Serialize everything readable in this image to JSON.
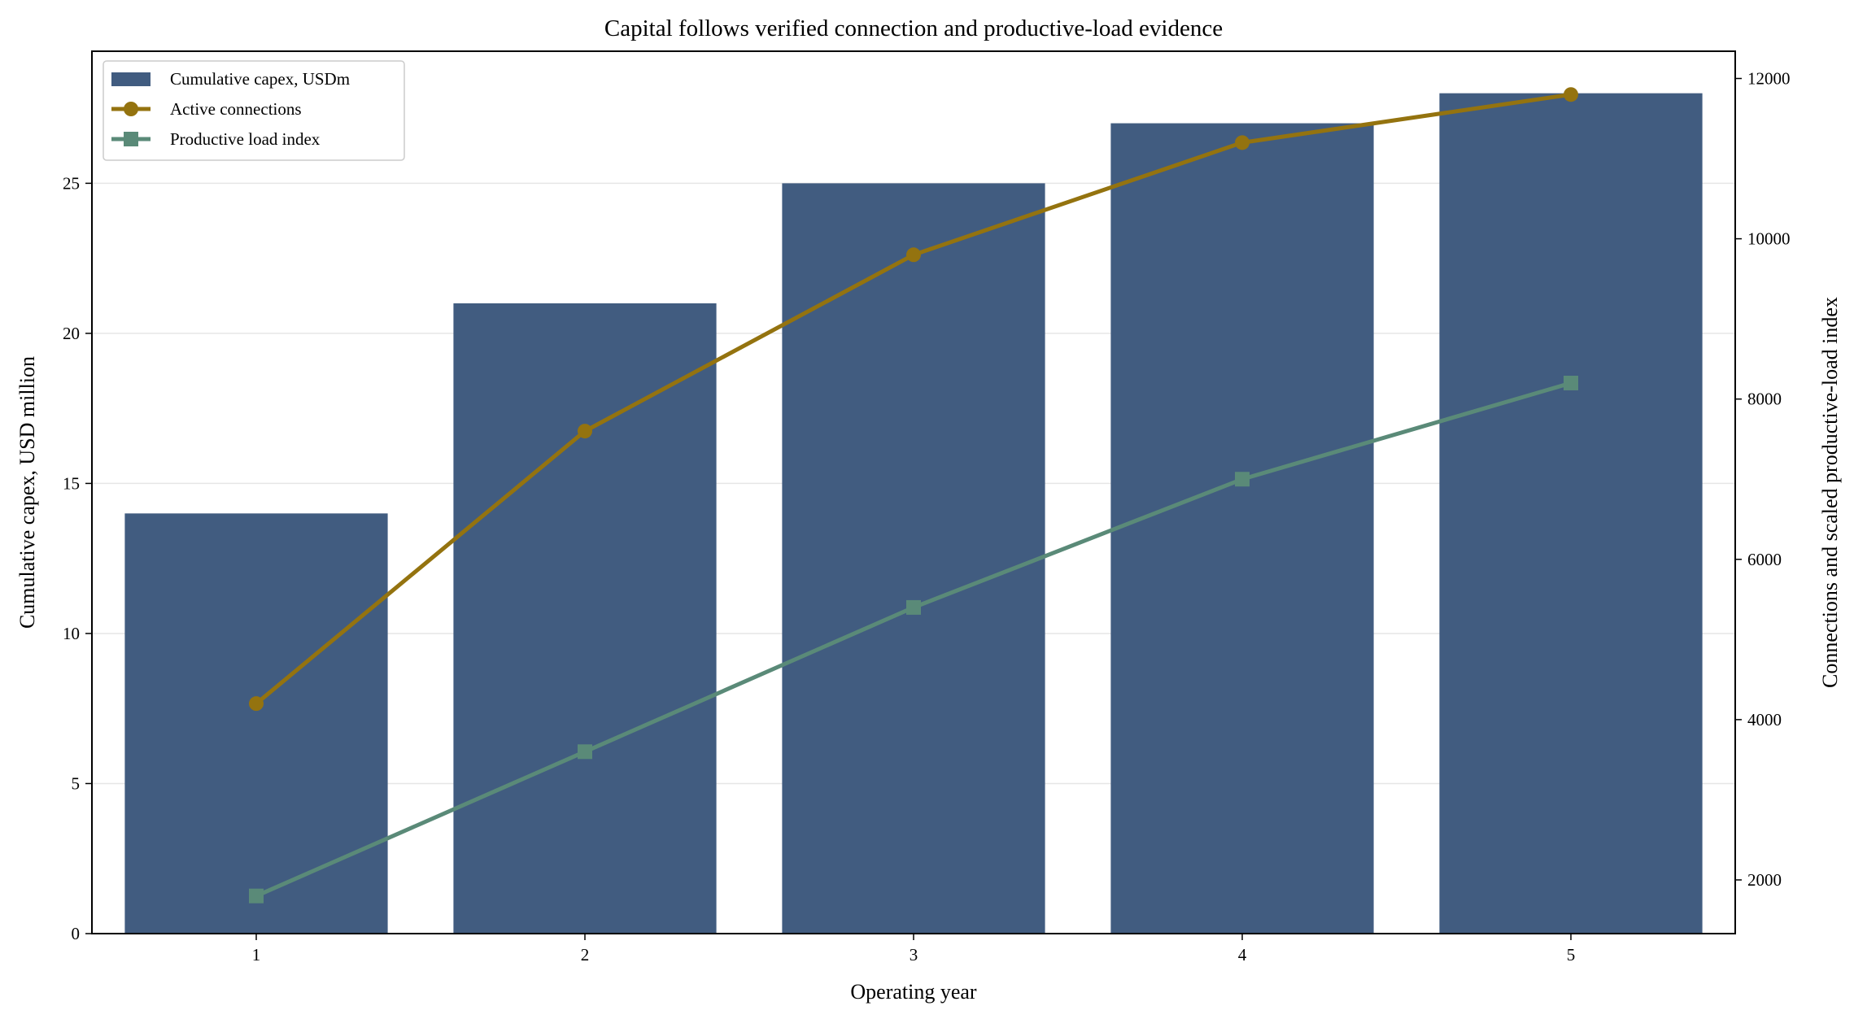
{
  "chart_data": {
    "type": "bar",
    "title": "Capital follows verified connection and productive-load evidence",
    "xlabel": "Operating year",
    "ylabel": "Cumulative capex, USD million",
    "y2label": "Connections and scaled productive-load index",
    "categories": [
      "1",
      "2",
      "3",
      "4",
      "5"
    ],
    "ylim": [
      0,
      29.4
    ],
    "y2lim": [
      1330,
      12340
    ],
    "yticks": [
      0,
      5,
      10,
      15,
      20,
      25
    ],
    "y2ticks": [
      2000,
      4000,
      6000,
      8000,
      10000,
      12000
    ],
    "grid": "horizontal",
    "legend_position": "upper-left",
    "series": [
      {
        "name": "Cumulative capex, USDm",
        "type": "bar",
        "axis": "left",
        "color": "#415c80",
        "values": [
          14,
          21,
          25,
          27,
          28
        ]
      },
      {
        "name": "Active connections",
        "type": "line",
        "marker": "circle",
        "axis": "right",
        "color": "#94730f",
        "values": [
          4200,
          7600,
          9800,
          11200,
          11800
        ]
      },
      {
        "name": "Productive load index",
        "type": "line",
        "marker": "square",
        "axis": "right",
        "color": "#5a8a78",
        "values": [
          1800,
          3600,
          5400,
          7000,
          8200
        ]
      }
    ]
  }
}
